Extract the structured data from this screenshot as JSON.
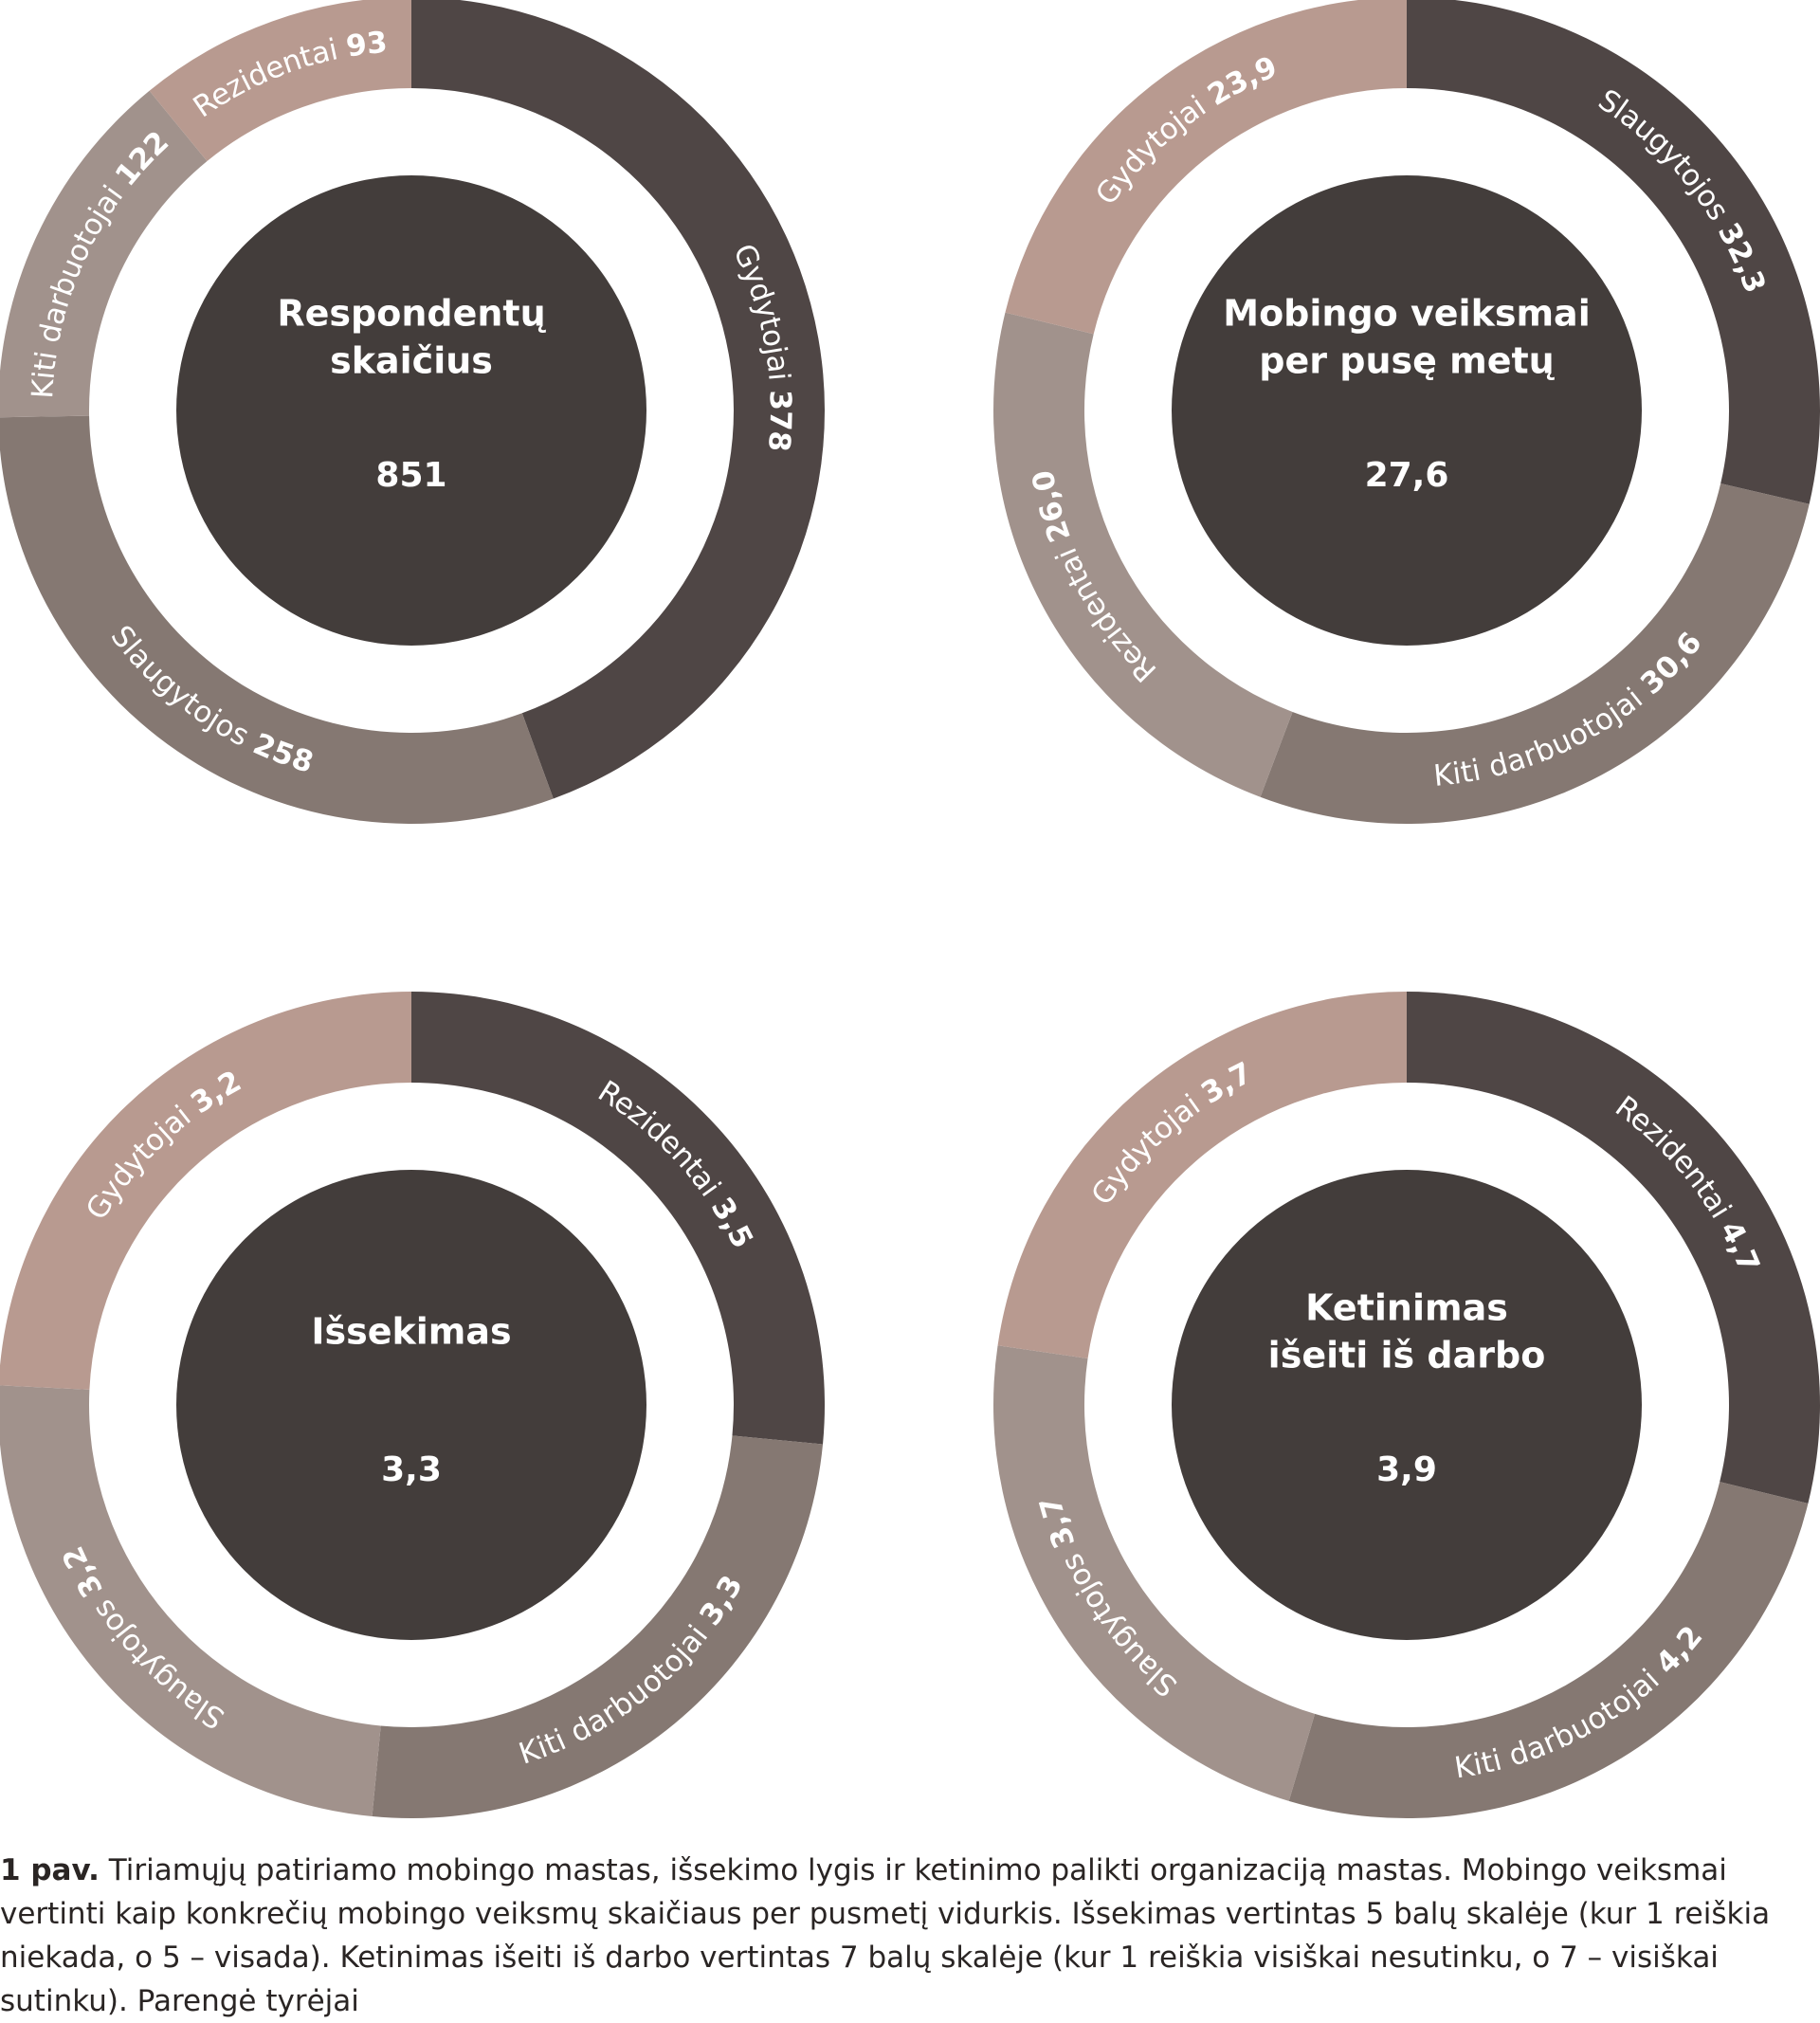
{
  "chart_data": [
    {
      "type": "donut",
      "title": [
        "Respondentų",
        "skaičius"
      ],
      "center_value": 851,
      "categories": [
        "Gydytojai",
        "Slaugytojos",
        "Kiti darbuotojai",
        "Rezidentai"
      ],
      "values": [
        378,
        258,
        122,
        93
      ],
      "colors": [
        "#4f4645",
        "#857872",
        "#a1928c",
        "#b89a90"
      ]
    },
    {
      "type": "donut",
      "title": [
        "Mobingo veiksmai",
        "per pusę metų"
      ],
      "center_value": 27.6,
      "center_value_label": "27,6",
      "categories": [
        "Slaugytojos",
        "Kiti darbuotojai",
        "Rezidentai",
        "Gydytojai"
      ],
      "values": [
        32.3,
        30.6,
        26.0,
        23.9
      ],
      "value_labels": [
        "32,3",
        "30,6",
        "26,0",
        "23,9"
      ],
      "colors": [
        "#4f4645",
        "#857872",
        "#a1928c",
        "#b89a90"
      ]
    },
    {
      "type": "donut",
      "title": [
        "Išsekimas"
      ],
      "center_value": 3.3,
      "center_value_label": "3,3",
      "categories": [
        "Rezidentai",
        "Kiti darbuotojai",
        "Slaugytojos",
        "Gydytojai"
      ],
      "values": [
        3.5,
        3.3,
        3.2,
        3.2
      ],
      "value_labels": [
        "3,5",
        "3,3",
        "3,2",
        "3,2"
      ],
      "colors": [
        "#4f4645",
        "#857872",
        "#a1928c",
        "#b89a90"
      ]
    },
    {
      "type": "donut",
      "title": [
        "Ketinimas",
        "išeiti iš darbo"
      ],
      "center_value": 3.9,
      "center_value_label": "3,9",
      "categories": [
        "Rezidentai",
        "Kiti darbuotojai",
        "Slaugytojos",
        "Gydytojai"
      ],
      "values": [
        4.7,
        4.2,
        3.7,
        3.7
      ],
      "value_labels": [
        "4,7",
        "4,2",
        "3,7",
        "3,7"
      ],
      "colors": [
        "#4f4645",
        "#857872",
        "#a1928c",
        "#b89a90"
      ]
    }
  ],
  "caption_label": "1 pav.",
  "caption": "Tiriamųjų patiriamo mobingo mastas, išsekimo lygis ir ketinimo palikti organizaciją mastas. Mobingo veiksmai vertinti kaip konkrečių mobingo veiksmų skaičiaus per pusmetį vidurkis. Išsekimas vertintas 5 balų skalėje (kur 1 reiškia niekada, o 5 – visada). Ketinimas išeiti iš darbo vertintas 7 balų skalėje (kur 1 reiškia visiškai nesutinku, o 7 – visiškai sutinku). Parengė tyrėjai"
}
